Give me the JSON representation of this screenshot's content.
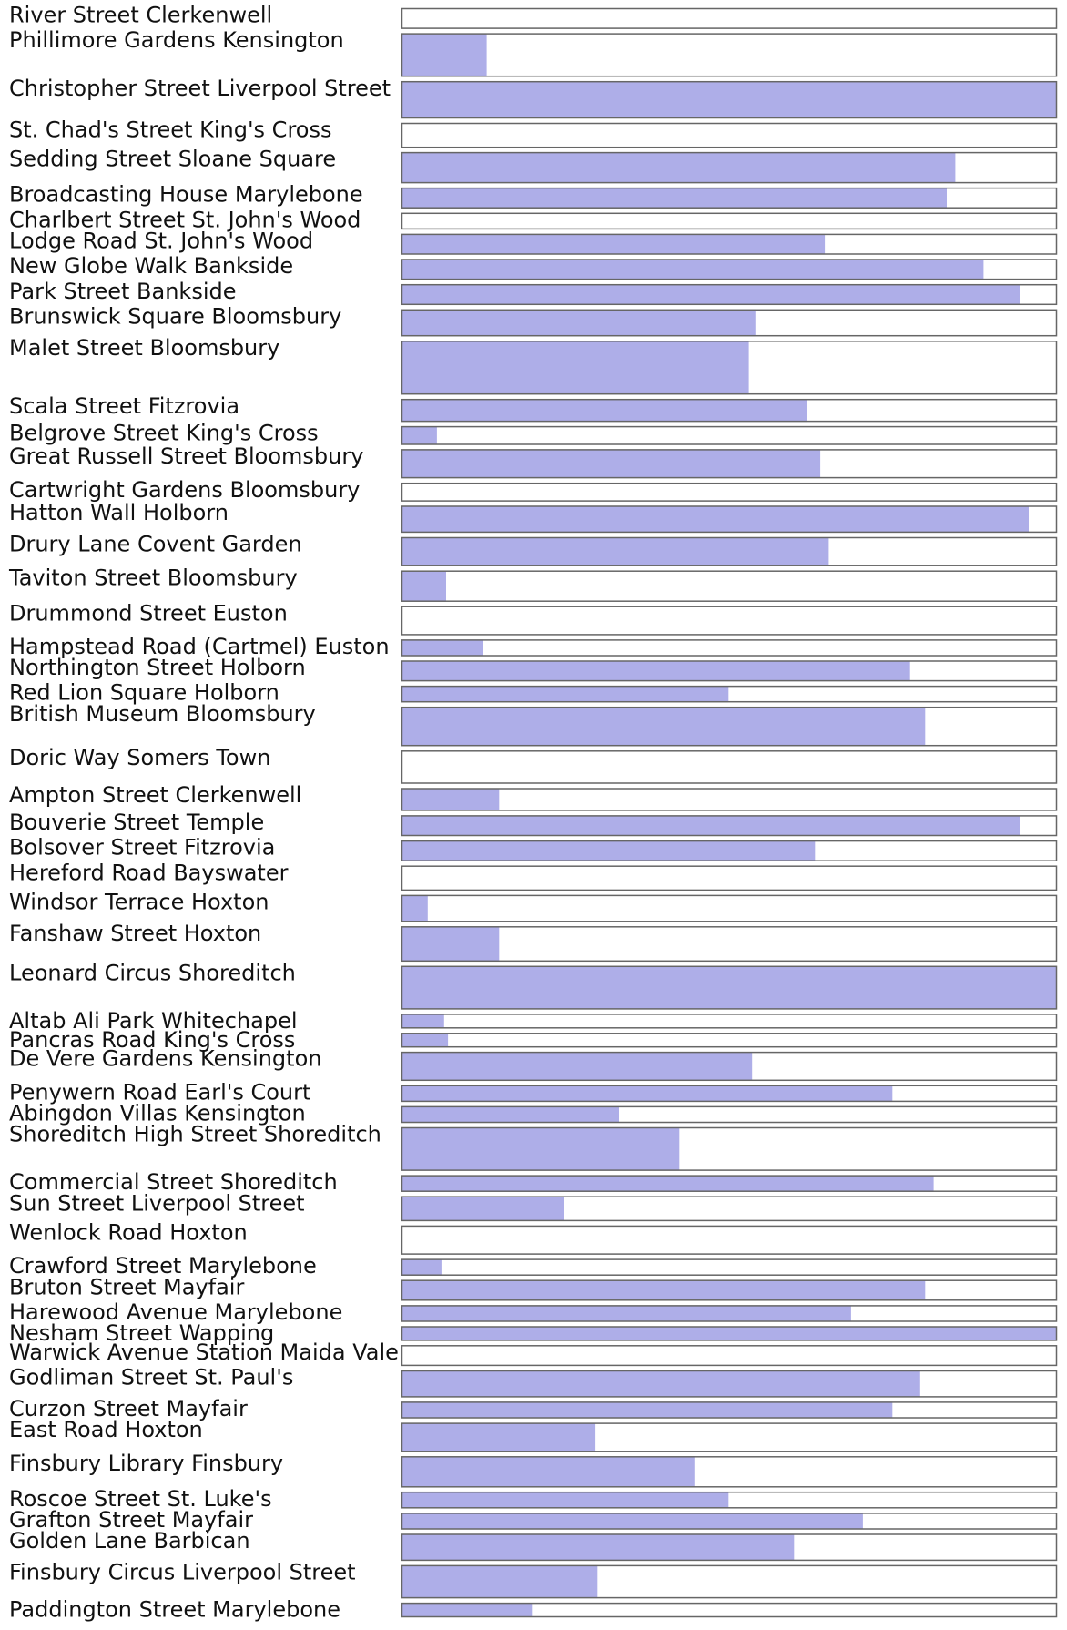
{
  "chart_data": {
    "type": "bar",
    "orientation": "horizontal",
    "title": "",
    "xlabel": "",
    "ylabel": "",
    "xlim": [
      0,
      1
    ],
    "grid": false,
    "legend": "none",
    "colors": {
      "fill": "#aeaee8",
      "track": "#ffffff",
      "border": "#666666"
    },
    "categories": [
      "River Street  Clerkenwell",
      "Phillimore Gardens Kensington",
      "Christopher Street Liverpool Street",
      "St. Chad's Street King's Cross",
      "Sedding Street Sloane Square",
      "Broadcasting House Marylebone",
      "Charlbert Street St. John's Wood",
      "Lodge Road St. John's Wood",
      "New Globe Walk Bankside",
      "Park Street Bankside",
      "Brunswick Square Bloomsbury",
      "Malet Street Bloomsbury",
      "Scala Street Fitzrovia",
      "Belgrove Street  King's Cross",
      "Great Russell Street Bloomsbury",
      "Cartwright Gardens  Bloomsbury",
      "Hatton Wall Holborn",
      "Drury Lane Covent Garden",
      "Taviton Street Bloomsbury",
      "Drummond Street  Euston",
      "Hampstead Road (Cartmel) Euston",
      "Northington Street  Holborn",
      "Red Lion Square Holborn",
      "British Museum Bloomsbury",
      "Doric Way  Somers Town",
      "Ampton Street  Clerkenwell",
      "Bouverie Street Temple",
      "Bolsover Street Fitzrovia",
      "Hereford Road Bayswater",
      "Windsor Terrace Hoxton",
      "Fanshaw Street Hoxton",
      "Leonard Circus  Shoreditch",
      "Altab Ali Park Whitechapel",
      "Pancras Road King's Cross",
      "De Vere Gardens Kensington",
      "Penywern Road Earl's Court",
      "Abingdon Villas Kensington",
      "Shoreditch High Street Shoreditch",
      "Commercial Street Shoreditch",
      "Sun Street Liverpool Street",
      "Wenlock Road  Hoxton",
      "Crawford Street Marylebone",
      "Bruton Street Mayfair",
      "Harewood Avenue Marylebone",
      "Nesham Street Wapping",
      "Warwick Avenue Station Maida Vale",
      "Godliman Street St. Paul's",
      "Curzon Street Mayfair",
      "East Road Hoxton",
      "Finsbury Library  Finsbury",
      "Roscoe Street St. Luke's",
      "Grafton Street Mayfair",
      "Golden Lane Barbican",
      "Finsbury Circus Liverpool Street",
      "Paddington Street Marylebone"
    ],
    "values": [
      0.0,
      0.13,
      1.0,
      0.0,
      0.845,
      0.832,
      0.0,
      0.646,
      0.888,
      0.943,
      0.54,
      0.53,
      0.618,
      0.054,
      0.639,
      0.0,
      0.957,
      0.652,
      0.068,
      0.0,
      0.124,
      0.776,
      0.499,
      0.799,
      0.0,
      0.149,
      0.943,
      0.631,
      0.0,
      0.04,
      0.149,
      1.0,
      0.065,
      0.071,
      0.535,
      0.749,
      0.332,
      0.424,
      0.812,
      0.248,
      0.0,
      0.061,
      0.799,
      0.686,
      1.0,
      0.0,
      0.79,
      0.749,
      0.296,
      0.447,
      0.499,
      0.704,
      0.599,
      0.299,
      0.199
    ],
    "weights": [
      20,
      42,
      36,
      24,
      30,
      20,
      16,
      20,
      20,
      20,
      26,
      52,
      22,
      18,
      28,
      18,
      26,
      28,
      30,
      28,
      16,
      20,
      16,
      38,
      32,
      22,
      20,
      20,
      24,
      26,
      34,
      42,
      14,
      14,
      28,
      16,
      16,
      42,
      16,
      24,
      28,
      16,
      20,
      16,
      14,
      20,
      26,
      16,
      28,
      30,
      16,
      16,
      26,
      32,
      14
    ]
  }
}
